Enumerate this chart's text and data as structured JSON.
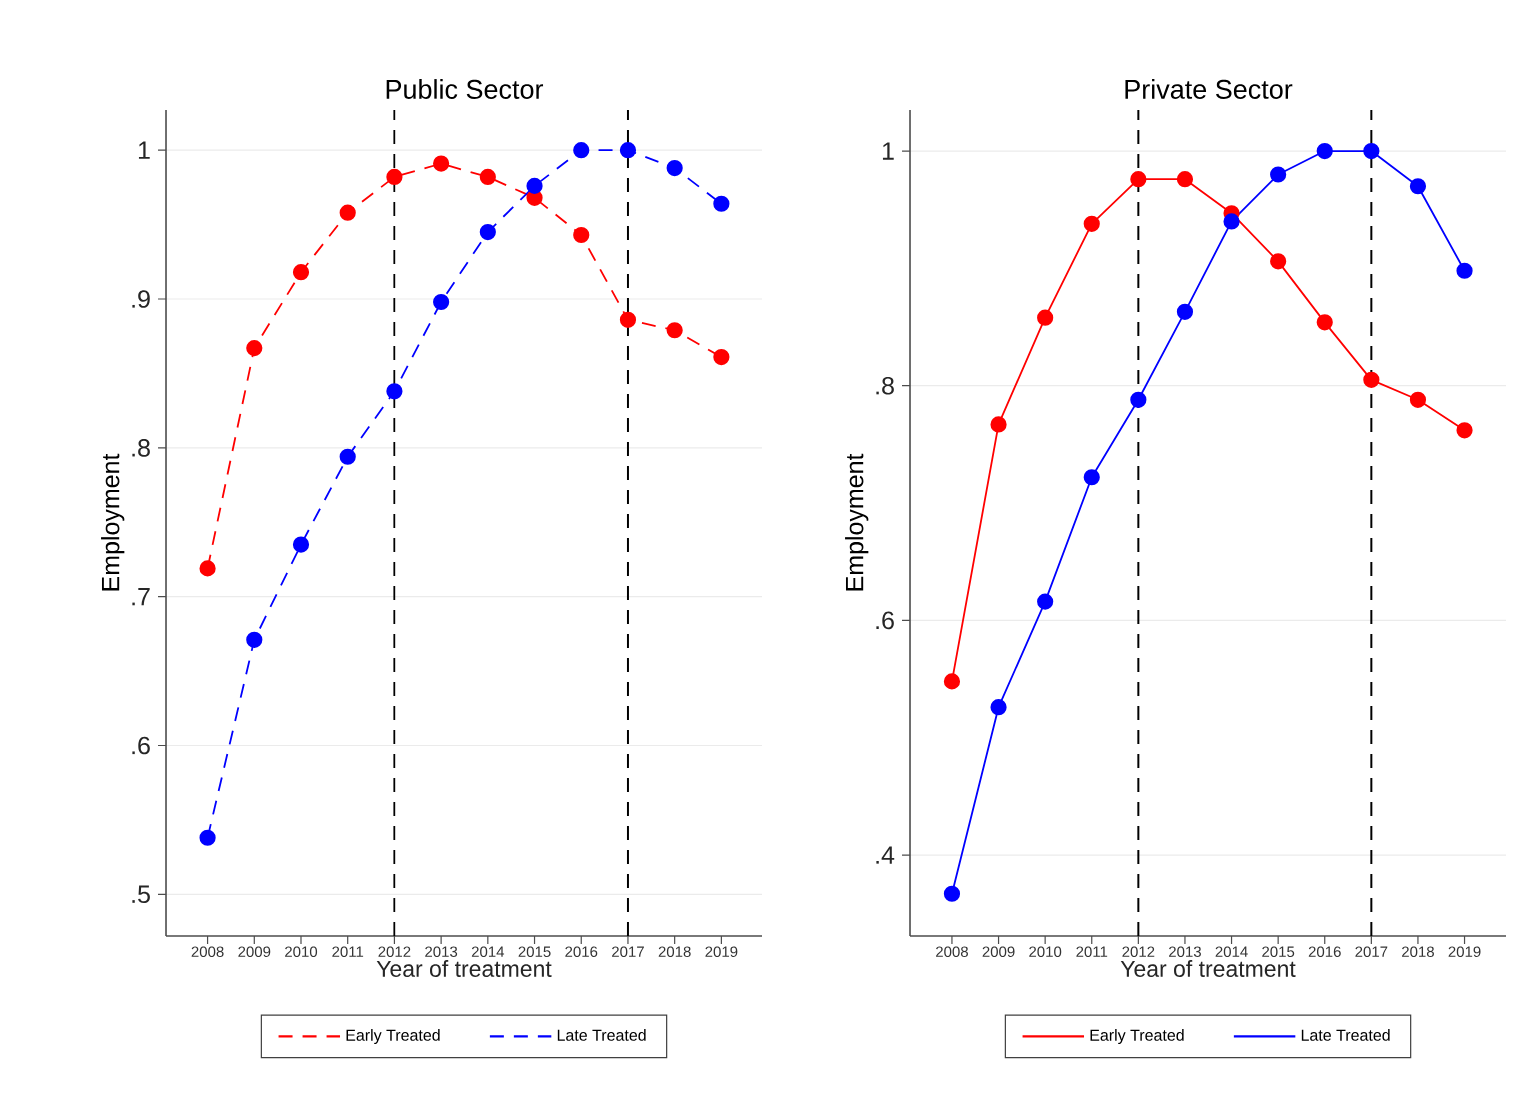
{
  "chart_data": [
    {
      "type": "line",
      "title": "Public Sector",
      "xlabel": "Year of treatment",
      "ylabel": "Employment",
      "x": [
        2008,
        2009,
        2010,
        2011,
        2012,
        2013,
        2014,
        2015,
        2016,
        2017,
        2018,
        2019
      ],
      "series": [
        {
          "name": "Early Treated",
          "color": "#ff0000",
          "values": [
            0.719,
            0.867,
            0.918,
            0.958,
            0.982,
            0.991,
            0.982,
            0.968,
            0.943,
            0.886,
            0.879,
            0.861
          ]
        },
        {
          "name": "Late Treated",
          "color": "#0000ff",
          "values": [
            0.538,
            0.671,
            0.735,
            0.794,
            0.838,
            0.898,
            0.945,
            0.976,
            1.0,
            1.0,
            0.988,
            0.964
          ]
        }
      ],
      "xlim": [
        2007.11,
        2019.87
      ],
      "ylim": [
        0.472,
        1.027
      ],
      "xticks": [
        2008,
        2009,
        2010,
        2011,
        2012,
        2013,
        2014,
        2015,
        2016,
        2017,
        2018,
        2019
      ],
      "yticks": [
        {
          "value": 0.5,
          "label": ".5"
        },
        {
          "value": 0.6,
          "label": ".6"
        },
        {
          "value": 0.7,
          "label": ".7"
        },
        {
          "value": 0.8,
          "label": ".8"
        },
        {
          "value": 0.9,
          "label": ".9"
        },
        1
      ],
      "ref_lines": [
        {
          "axis": "x",
          "value": 2012,
          "color": "#000000",
          "line_style": "dashed"
        },
        {
          "axis": "x",
          "value": 2017,
          "color": "#000000",
          "line_style": "dashed"
        }
      ],
      "grid": "y",
      "legend": "bottom",
      "marker": "circle",
      "line_style": "dashed"
    },
    {
      "type": "line",
      "title": "Private Sector",
      "xlabel": "Year of treatment",
      "ylabel": "Employment",
      "x": [
        2008,
        2009,
        2010,
        2011,
        2012,
        2013,
        2014,
        2015,
        2016,
        2017,
        2018,
        2019
      ],
      "series": [
        {
          "name": "Early Treated",
          "color": "#ff0000",
          "values": [
            0.548,
            0.767,
            0.858,
            0.938,
            0.976,
            0.976,
            0.947,
            0.906,
            0.854,
            0.805,
            0.788,
            0.762
          ]
        },
        {
          "name": "Late Treated",
          "color": "#0000ff",
          "values": [
            0.367,
            0.526,
            0.616,
            0.722,
            0.788,
            0.863,
            0.94,
            0.98,
            1.0,
            1.0,
            0.97,
            0.898
          ]
        }
      ],
      "xlim": [
        2007.1,
        2019.89
      ],
      "ylim": [
        0.331,
        1.035
      ],
      "xticks": [
        2008,
        2009,
        2010,
        2011,
        2012,
        2013,
        2014,
        2015,
        2016,
        2017,
        2018,
        2019
      ],
      "yticks": [
        {
          "value": 0.4,
          "label": ".4"
        },
        {
          "value": 0.6,
          "label": ".6"
        },
        {
          "value": 0.8,
          "label": ".8"
        },
        1
      ],
      "ref_lines": [
        {
          "axis": "x",
          "value": 2012,
          "color": "#000000",
          "line_style": "dashed"
        },
        {
          "axis": "x",
          "value": 2017,
          "color": "#000000",
          "line_style": "dashed"
        }
      ],
      "grid": "y",
      "legend": "bottom",
      "marker": "circle",
      "line_style": "solid"
    }
  ]
}
